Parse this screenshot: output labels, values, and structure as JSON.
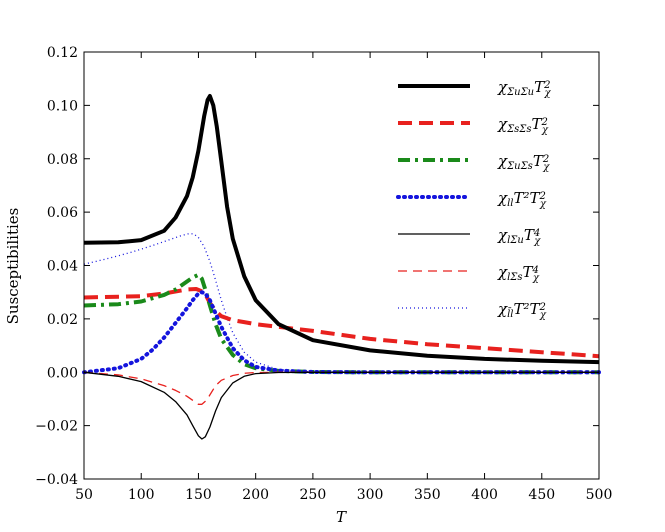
{
  "chart_data": {
    "type": "line",
    "title": "",
    "xlabel": "T",
    "ylabel": "Susceptibilities",
    "xlim": [
      50,
      500
    ],
    "ylim": [
      -0.04,
      0.12
    ],
    "x_ticks": [
      50,
      100,
      150,
      200,
      250,
      300,
      350,
      400,
      450,
      500
    ],
    "x_tick_labels": [
      "50",
      "100",
      "150",
      "200",
      "250",
      "300",
      "350",
      "400",
      "450",
      "500"
    ],
    "y_ticks": [
      -0.04,
      -0.02,
      0.0,
      0.02,
      0.04,
      0.06,
      0.08,
      0.1,
      0.12
    ],
    "y_tick_labels": [
      "−0.04",
      "−0.02",
      "0.00",
      "0.02",
      "0.04",
      "0.06",
      "0.08",
      "0.10",
      "0.12"
    ],
    "grid": false,
    "legend_position": "top-right",
    "series": [
      {
        "name": "χΣuΣu Tχ²",
        "legend": {
          "base": "χ",
          "sub": "ΣuΣu",
          "mid": "T",
          "sup": "2",
          "sub2": "χ"
        },
        "color": "#000000",
        "style": "solid",
        "weight": "thick",
        "x": [
          50,
          80,
          100,
          120,
          130,
          140,
          145,
          150,
          155,
          158,
          160,
          163,
          166,
          170,
          175,
          180,
          190,
          200,
          220,
          250,
          300,
          350,
          400,
          450,
          500
        ],
        "values": [
          0.0485,
          0.0487,
          0.0495,
          0.053,
          0.058,
          0.066,
          0.073,
          0.083,
          0.096,
          0.102,
          0.1035,
          0.1,
          0.092,
          0.079,
          0.062,
          0.05,
          0.036,
          0.027,
          0.018,
          0.012,
          0.0082,
          0.0062,
          0.005,
          0.0043,
          0.0038
        ]
      },
      {
        "name": "χΣsΣs Tχ²",
        "legend": {
          "base": "χ",
          "sub": "ΣsΣs",
          "mid": "T",
          "sup": "2",
          "sub2": "χ"
        },
        "color": "#e8211e",
        "style": "dashed",
        "weight": "thick",
        "x": [
          50,
          100,
          120,
          140,
          148,
          155,
          160,
          165,
          170,
          180,
          190,
          200,
          250,
          300,
          350,
          400,
          450,
          500
        ],
        "values": [
          0.028,
          0.0285,
          0.0295,
          0.031,
          0.0312,
          0.03,
          0.026,
          0.023,
          0.021,
          0.0195,
          0.0188,
          0.018,
          0.0155,
          0.0125,
          0.0105,
          0.009,
          0.0075,
          0.006
        ]
      },
      {
        "name": "χΣuΣs Tχ²",
        "legend": {
          "base": "χ",
          "sub": "ΣuΣs",
          "mid": "T",
          "sup": "2",
          "sub2": "χ"
        },
        "color": "#1a8a1a",
        "style": "dashdot",
        "weight": "thick",
        "x": [
          50,
          80,
          100,
          120,
          130,
          140,
          145,
          150,
          153,
          156,
          160,
          165,
          170,
          180,
          190,
          200,
          220,
          250,
          300,
          400,
          500
        ],
        "values": [
          0.025,
          0.0255,
          0.0265,
          0.029,
          0.031,
          0.034,
          0.0355,
          0.0365,
          0.035,
          0.031,
          0.025,
          0.018,
          0.0125,
          0.0065,
          0.003,
          0.0015,
          0.0005,
          0.0001,
          0.0,
          0.0,
          0.0
        ]
      },
      {
        "name": "χll T² Tχ²",
        "legend": {
          "base": "χ",
          "sub": "ll",
          "mid": "T²T",
          "sup": "2",
          "sub2": "χ"
        },
        "color": "#1414dd",
        "style": "dotted",
        "weight": "thick",
        "x": [
          50,
          80,
          100,
          110,
          120,
          130,
          140,
          145,
          150,
          153,
          156,
          160,
          165,
          170,
          180,
          190,
          200,
          220,
          250,
          300,
          400,
          500
        ],
        "values": [
          0.0,
          0.0015,
          0.005,
          0.0085,
          0.013,
          0.0185,
          0.024,
          0.027,
          0.0295,
          0.03,
          0.0295,
          0.027,
          0.022,
          0.017,
          0.009,
          0.0045,
          0.002,
          0.0006,
          0.0001,
          0.0,
          0.0,
          0.0
        ]
      },
      {
        "name": "χlΣu Tχ⁴",
        "legend": {
          "base": "χ",
          "sub": "lΣu",
          "mid": "T",
          "sup": "4",
          "sub2": "χ"
        },
        "color": "#000000",
        "style": "solid",
        "weight": "thin",
        "x": [
          50,
          80,
          100,
          120,
          130,
          140,
          145,
          150,
          153,
          156,
          160,
          165,
          170,
          180,
          190,
          200,
          220,
          250,
          300,
          500
        ],
        "values": [
          0.0,
          -0.0015,
          -0.0035,
          -0.0075,
          -0.011,
          -0.016,
          -0.02,
          -0.0238,
          -0.025,
          -0.0242,
          -0.0205,
          -0.0145,
          -0.0095,
          -0.004,
          -0.0015,
          -0.0005,
          -0.0001,
          0.0,
          0.0,
          0.0
        ]
      },
      {
        "name": "χlΣs Tχ⁴",
        "legend": {
          "base": "χ",
          "sub": "lΣs",
          "mid": "T",
          "sup": "4",
          "sub2": "χ"
        },
        "color": "#e8211e",
        "style": "dashed",
        "weight": "thin",
        "x": [
          50,
          80,
          100,
          120,
          130,
          140,
          145,
          150,
          153,
          157,
          160,
          165,
          170,
          180,
          190,
          200,
          220,
          250,
          300,
          500
        ],
        "values": [
          0.0,
          -0.001,
          -0.0025,
          -0.005,
          -0.0068,
          -0.009,
          -0.0105,
          -0.012,
          -0.012,
          -0.0105,
          -0.0085,
          -0.005,
          -0.003,
          -0.0012,
          -0.0004,
          -0.0001,
          0.0,
          0.0,
          0.0,
          0.0
        ]
      },
      {
        "name": "χl̄l T² Tχ²",
        "legend": {
          "base": "χ",
          "sub": "l̄l",
          "mid": "T²T",
          "sup": "2",
          "sub2": "χ"
        },
        "color": "#1414dd",
        "style": "dotted",
        "weight": "thin",
        "x": [
          50,
          70,
          90,
          110,
          125,
          135,
          142,
          146,
          150,
          155,
          160,
          165,
          170,
          175,
          180,
          190,
          200,
          220,
          250,
          300,
          400,
          500
        ],
        "values": [
          0.0405,
          0.0425,
          0.0448,
          0.0475,
          0.0497,
          0.0512,
          0.052,
          0.0518,
          0.0505,
          0.047,
          0.0415,
          0.0345,
          0.027,
          0.0205,
          0.0148,
          0.0075,
          0.0038,
          0.001,
          0.0001,
          0.0,
          0.0,
          0.0
        ]
      }
    ]
  }
}
